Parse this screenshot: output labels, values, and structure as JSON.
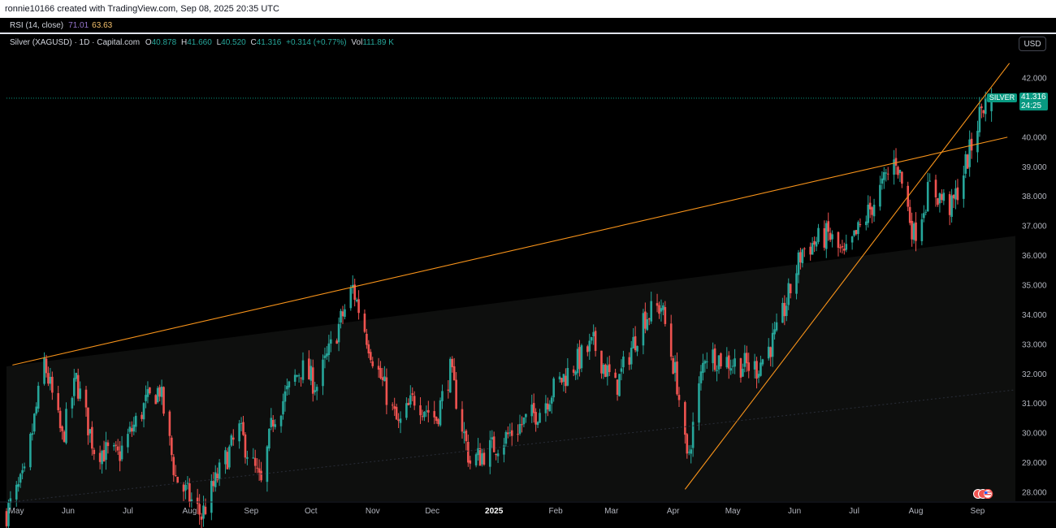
{
  "header": {
    "created_text": "ronnie10166 created with TradingView.com, Sep 08, 2025 20:35 UTC"
  },
  "rsi": {
    "label": "RSI (14, close)",
    "value1": "71.01",
    "value2": "63.63"
  },
  "legend": {
    "symbol": "Silver (XAGUSD) · 1D · Capital.com",
    "o_label": "O",
    "o": "40.878",
    "h_label": "H",
    "h": "41.660",
    "l_label": "L",
    "l": "40.520",
    "c_label": "C",
    "c": "41.316",
    "change": "+0.314 (+0.77%)",
    "vol_label": "Vol",
    "vol": "111.89 K"
  },
  "currency": "USD",
  "price_tag": {
    "symbol": "SILVER",
    "price": "41.316",
    "countdown": "24:25"
  },
  "colors": {
    "up": "#26a69a",
    "down": "#ef5350",
    "trend": "#f7931a",
    "background": "#000000"
  },
  "chart_data": {
    "type": "candlestick",
    "title": "Silver (XAGUSD) · 1D · Capital.com",
    "ylim": [
      27.8,
      42.6
    ],
    "y_ticks": [
      "28.000",
      "29.000",
      "30.000",
      "31.000",
      "32.000",
      "33.000",
      "34.000",
      "35.000",
      "36.000",
      "37.000",
      "38.000",
      "39.000",
      "40.000",
      "42.000"
    ],
    "x_ticks": [
      "May",
      "Jun",
      "Jul",
      "Aug",
      "Sep",
      "Oct",
      "Nov",
      "Dec",
      "2025",
      "Feb",
      "Mar",
      "Apr",
      "May",
      "Jun",
      "Jul",
      "Aug",
      "Sep"
    ],
    "x_range": [
      "2024-05-01",
      "2025-09-20"
    ],
    "last_price": 41.316,
    "anchors": [
      [
        "2024-05-01",
        27.3
      ],
      [
        "2024-05-10",
        28.5
      ],
      [
        "2024-05-20",
        32.4
      ],
      [
        "2024-05-29",
        29.8
      ],
      [
        "2024-06-05",
        31.8
      ],
      [
        "2024-06-14",
        29.5
      ],
      [
        "2024-06-26",
        29.2
      ],
      [
        "2024-07-10",
        31.0
      ],
      [
        "2024-07-17",
        31.5
      ],
      [
        "2024-07-25",
        28.5
      ],
      [
        "2024-08-07",
        27.2
      ],
      [
        "2024-08-15",
        28.5
      ],
      [
        "2024-08-26",
        30.1
      ],
      [
        "2024-09-06",
        28.2
      ],
      [
        "2024-09-12",
        30.5
      ],
      [
        "2024-09-26",
        32.2
      ],
      [
        "2024-10-04",
        31.6
      ],
      [
        "2024-10-22",
        34.9
      ],
      [
        "2024-11-01",
        32.6
      ],
      [
        "2024-11-14",
        30.2
      ],
      [
        "2024-11-22",
        31.2
      ],
      [
        "2024-12-03",
        30.5
      ],
      [
        "2024-12-10",
        32.1
      ],
      [
        "2024-12-20",
        29.0
      ],
      [
        "2025-01-02",
        29.6
      ],
      [
        "2025-01-15",
        30.3
      ],
      [
        "2025-01-24",
        30.8
      ],
      [
        "2025-01-31",
        31.5
      ],
      [
        "2025-02-13",
        32.5
      ],
      [
        "2025-02-20",
        33.0
      ],
      [
        "2025-03-03",
        31.5
      ],
      [
        "2025-03-17",
        33.9
      ],
      [
        "2025-03-26",
        34.3
      ],
      [
        "2025-04-03",
        31.7
      ],
      [
        "2025-04-08",
        29.0
      ],
      [
        "2025-04-17",
        32.7
      ],
      [
        "2025-04-30",
        32.4
      ],
      [
        "2025-05-13",
        32.2
      ],
      [
        "2025-05-23",
        33.3
      ],
      [
        "2025-06-05",
        36.2
      ],
      [
        "2025-06-18",
        36.7
      ],
      [
        "2025-06-26",
        35.9
      ],
      [
        "2025-07-03",
        36.8
      ],
      [
        "2025-07-14",
        38.2
      ],
      [
        "2025-07-22",
        39.3
      ],
      [
        "2025-07-31",
        36.7
      ],
      [
        "2025-08-08",
        38.3
      ],
      [
        "2025-08-19",
        37.6
      ],
      [
        "2025-08-29",
        39.7
      ],
      [
        "2025-09-03",
        41.0
      ],
      [
        "2025-09-08",
        41.3
      ]
    ],
    "trendlines": [
      {
        "name": "upper",
        "from": [
          "2024-05-04",
          32.3
        ],
        "to": [
          "2025-09-16",
          40.0
        ]
      },
      {
        "name": "support",
        "from": [
          "2025-04-07",
          28.1
        ],
        "to": [
          "2025-09-17",
          42.5
        ]
      }
    ]
  }
}
